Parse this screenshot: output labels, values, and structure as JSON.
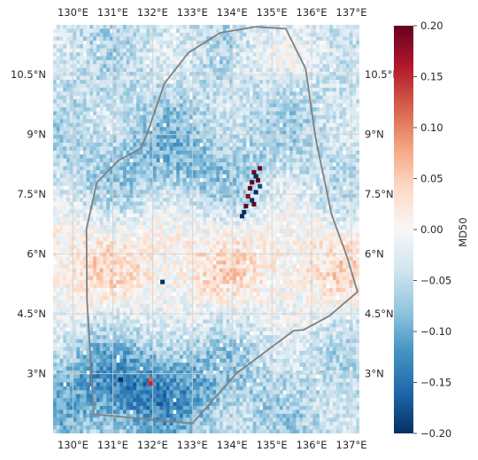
{
  "map": {
    "extent": {
      "lon_min": 129.5,
      "lon_max": 137.2,
      "lat_min": 1.5,
      "lat_max": 11.75
    },
    "lon_ticks": [
      {
        "value": 130,
        "label": "130°E"
      },
      {
        "value": 131,
        "label": "131°E"
      },
      {
        "value": 132,
        "label": "132°E"
      },
      {
        "value": 133,
        "label": "133°E"
      },
      {
        "value": 134,
        "label": "134°E"
      },
      {
        "value": 135,
        "label": "135°E"
      },
      {
        "value": 136,
        "label": "136°E"
      },
      {
        "value": 137,
        "label": "137°E"
      }
    ],
    "lat_ticks": [
      {
        "value": 3,
        "label": "3°N"
      },
      {
        "value": 4.5,
        "label": "4.5°N"
      },
      {
        "value": 6,
        "label": "6°N"
      },
      {
        "value": 7.5,
        "label": "7.5°N"
      },
      {
        "value": 9,
        "label": "9°N"
      },
      {
        "value": 10.5,
        "label": "10.5°N"
      }
    ],
    "grid": true,
    "grid_color": "#cfcfcf",
    "boundary_color": "#808080",
    "boundary_lonlat": [
      [
        130.52,
        1.98
      ],
      [
        130.35,
        4.9
      ],
      [
        130.34,
        6.63
      ],
      [
        130.6,
        7.8
      ],
      [
        131.15,
        8.35
      ],
      [
        131.7,
        8.65
      ],
      [
        131.85,
        8.98
      ],
      [
        132.3,
        10.28
      ],
      [
        132.9,
        11.05
      ],
      [
        133.7,
        11.55
      ],
      [
        134.6,
        11.7
      ],
      [
        135.35,
        11.65
      ],
      [
        135.85,
        10.65
      ],
      [
        136.1,
        8.9
      ],
      [
        136.5,
        7.0
      ],
      [
        136.9,
        5.9
      ],
      [
        137.15,
        5.05
      ],
      [
        136.45,
        4.45
      ],
      [
        135.8,
        4.1
      ],
      [
        135.55,
        4.08
      ],
      [
        134.1,
        3.0
      ],
      [
        133.0,
        1.75
      ],
      [
        131.2,
        1.92
      ],
      [
        130.52,
        1.98
      ]
    ]
  },
  "colorbar": {
    "label": "MD50",
    "vmin": -0.2,
    "vmax": 0.2,
    "ticks": [
      {
        "value": 0.2,
        "label": "0.20"
      },
      {
        "value": 0.15,
        "label": "0.15"
      },
      {
        "value": 0.1,
        "label": "0.10"
      },
      {
        "value": 0.05,
        "label": "0.05"
      },
      {
        "value": 0.0,
        "label": "0.00"
      },
      {
        "value": -0.05,
        "label": "−0.05"
      },
      {
        "value": -0.1,
        "label": "−0.10"
      },
      {
        "value": -0.15,
        "label": "−0.15"
      },
      {
        "value": -0.2,
        "label": "−0.20"
      }
    ],
    "colors": [
      "#053061",
      "#2166ac",
      "#4393c3",
      "#92c5de",
      "#d1e5f0",
      "#f7f7f7",
      "#fddbc7",
      "#f4a582",
      "#d6604d",
      "#b2182b",
      "#67001f"
    ]
  }
}
